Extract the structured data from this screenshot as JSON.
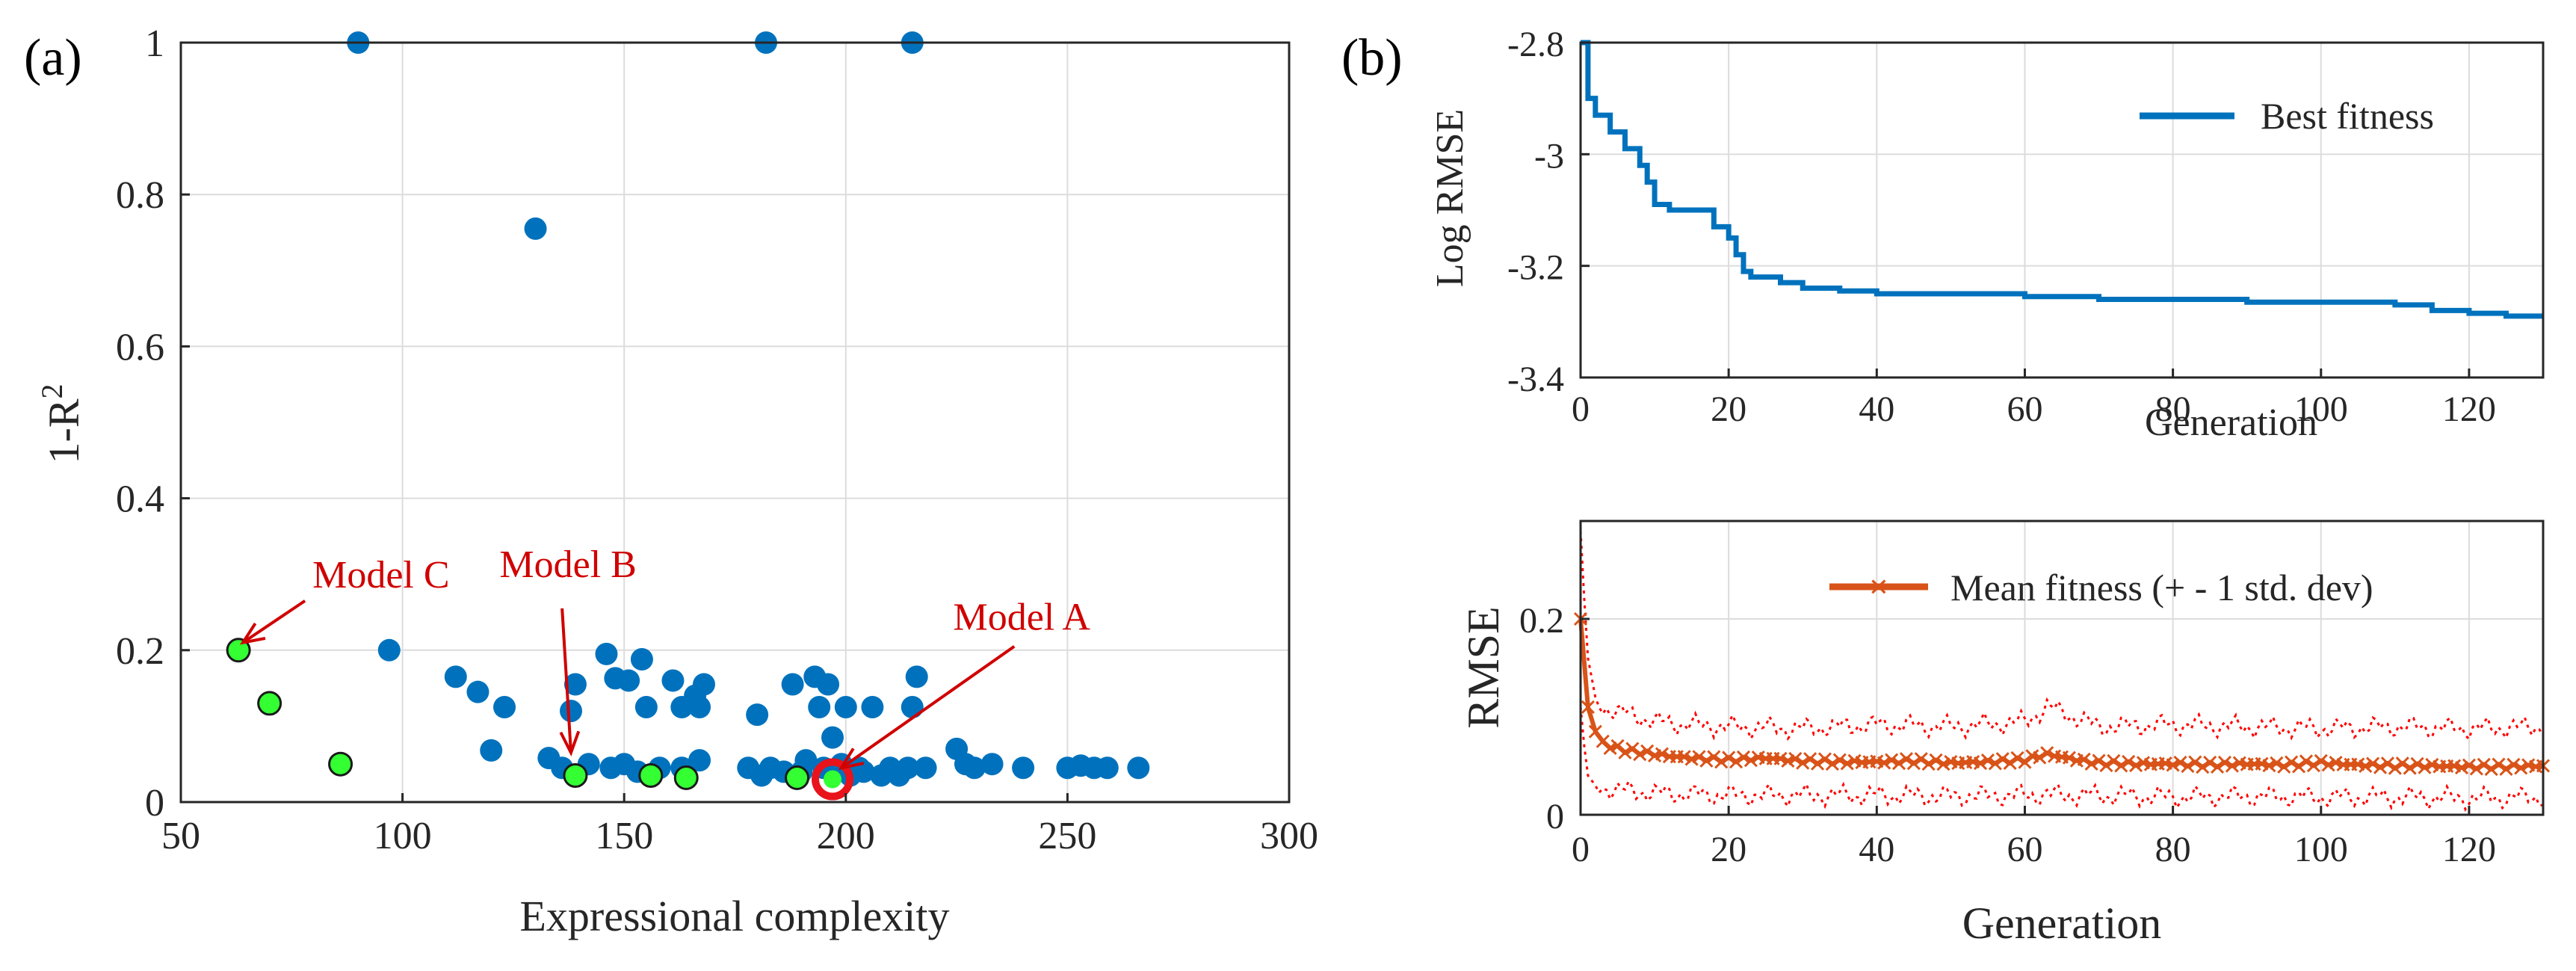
{
  "chart_data": [
    {
      "panel_label": "(a)",
      "type": "scatter",
      "xlabel": "Expressional complexity",
      "ylabel": "1-R",
      "ylabel_sup": "2",
      "xlim": [
        50,
        300
      ],
      "ylim": [
        0,
        1
      ],
      "xticks": [
        50,
        100,
        150,
        200,
        250,
        300
      ],
      "yticks": [
        0,
        0.2,
        0.4,
        0.6,
        0.8,
        1
      ],
      "ytick_labels": [
        "0",
        "0.2",
        "0.4",
        "0.6",
        "0.8",
        "1"
      ],
      "grid": true,
      "colors": {
        "models": "#0072BD",
        "pareto": "#33FF33",
        "highlight": "#E8131B",
        "annotation": "#D00000"
      },
      "series": [
        {
          "name": "models",
          "points": [
            [
              90,
              1.0
            ],
            [
              182,
              1.0
            ],
            [
              215,
              1.0
            ],
            [
              130,
              0.755
            ],
            [
              97,
              0.2
            ],
            [
              112,
              0.165
            ],
            [
              117,
              0.145
            ],
            [
              123,
              0.125
            ],
            [
              120,
              0.068
            ],
            [
              133,
              0.058
            ],
            [
              139,
              0.155
            ],
            [
              138,
              0.12
            ],
            [
              136,
              0.045
            ],
            [
              142,
              0.05
            ],
            [
              146,
              0.195
            ],
            [
              148,
              0.163
            ],
            [
              151,
              0.16
            ],
            [
              154,
              0.188
            ],
            [
              155,
              0.125
            ],
            [
              147,
              0.045
            ],
            [
              150,
              0.05
            ],
            [
              153,
              0.04
            ],
            [
              158,
              0.045
            ],
            [
              161,
              0.16
            ],
            [
              163,
              0.125
            ],
            [
              163,
              0.045
            ],
            [
              166,
              0.14
            ],
            [
              167,
              0.125
            ],
            [
              168,
              0.155
            ],
            [
              167,
              0.055
            ],
            [
              178,
              0.045
            ],
            [
              180,
              0.115
            ],
            [
              181,
              0.035
            ],
            [
              183,
              0.045
            ],
            [
              186,
              0.04
            ],
            [
              188,
              0.155
            ],
            [
              190,
              0.04
            ],
            [
              191,
              0.055
            ],
            [
              193,
              0.165
            ],
            [
              194,
              0.125
            ],
            [
              195,
              0.045
            ],
            [
              196,
              0.155
            ],
            [
              197,
              0.085
            ],
            [
              199,
              0.05
            ],
            [
              200,
              0.125
            ],
            [
              201,
              0.035
            ],
            [
              203,
              0.045
            ],
            [
              204,
              0.04
            ],
            [
              206,
              0.125
            ],
            [
              208,
              0.035
            ],
            [
              210,
              0.045
            ],
            [
              212,
              0.035
            ],
            [
              214,
              0.045
            ],
            [
              215,
              0.125
            ],
            [
              216,
              0.165
            ],
            [
              218,
              0.045
            ],
            [
              225,
              0.07
            ],
            [
              227,
              0.05
            ],
            [
              229,
              0.045
            ],
            [
              233,
              0.05
            ],
            [
              240,
              0.045
            ],
            [
              250,
              0.045
            ],
            [
              253,
              0.048
            ],
            [
              256,
              0.045
            ],
            [
              259,
              0.045
            ],
            [
              266,
              0.045
            ]
          ]
        },
        {
          "name": "pareto front",
          "points": [
            [
              63,
              0.2
            ],
            [
              70,
              0.13
            ],
            [
              86,
              0.05
            ],
            [
              139,
              0.035
            ],
            [
              156,
              0.035
            ],
            [
              164,
              0.032
            ],
            [
              189,
              0.032
            ]
          ]
        },
        {
          "name": "Model A",
          "points": [
            [
              197,
              0.03
            ]
          ]
        }
      ],
      "annotations": [
        {
          "text": "Model C",
          "tip": [
            64,
            0.21
          ],
          "from": [
            78,
            0.265
          ]
        },
        {
          "text": "Model B",
          "tip": [
            138,
            0.065
          ],
          "from": [
            136,
            0.255
          ]
        },
        {
          "text": "Model A",
          "tip": [
            199,
            0.045
          ],
          "from": [
            238,
            0.205
          ]
        }
      ]
    },
    {
      "panel_label": "(b)",
      "type": "line",
      "xlabel": "Generation",
      "ylabel": "Log RMSE",
      "xlim": [
        0,
        130
      ],
      "ylim": [
        -3.4,
        -2.8
      ],
      "xticks": [
        0,
        20,
        40,
        60,
        80,
        100,
        120
      ],
      "yticks": [
        -2.8,
        -3,
        -3.2,
        -3.4
      ],
      "ytick_labels": [
        "-2.8",
        "-3",
        "-3.2",
        "-3.4"
      ],
      "grid": true,
      "legend": "Best fitness",
      "color": "#0072BD",
      "series": [
        {
          "name": "Best fitness",
          "x": [
            0,
            1,
            2,
            4,
            6,
            8,
            9,
            10,
            12,
            15,
            18,
            20,
            21,
            22,
            23,
            27,
            30,
            35,
            40,
            50,
            60,
            70,
            80,
            90,
            100,
            110,
            115,
            120,
            125,
            130
          ],
          "values": [
            -2.8,
            -2.9,
            -2.93,
            -2.96,
            -2.99,
            -3.02,
            -3.05,
            -3.09,
            -3.1,
            -3.1,
            -3.13,
            -3.15,
            -3.18,
            -3.21,
            -3.22,
            -3.23,
            -3.24,
            -3.245,
            -3.25,
            -3.25,
            -3.255,
            -3.26,
            -3.26,
            -3.265,
            -3.265,
            -3.27,
            -3.28,
            -3.285,
            -3.29,
            -3.29
          ]
        }
      ]
    },
    {
      "type": "line",
      "xlabel": "Generation",
      "ylabel": "RMSE",
      "xlim": [
        0,
        130
      ],
      "ylim": [
        0,
        0.3
      ],
      "xticks": [
        0,
        20,
        40,
        60,
        80,
        100,
        120
      ],
      "yticks": [
        0,
        0.2
      ],
      "ytick_labels": [
        "0",
        "0.2"
      ],
      "grid": true,
      "legend": "Mean fitness (+ - 1 std. dev)",
      "color": "#D95319",
      "band_color": "#FF0000",
      "series": [
        {
          "name": "Mean fitness",
          "x": [
            0,
            0.5,
            1,
            2,
            3,
            4,
            5,
            6,
            8,
            10,
            12,
            15,
            20,
            25,
            30,
            35,
            40,
            45,
            50,
            55,
            60,
            63,
            65,
            68,
            70,
            75,
            80,
            85,
            90,
            95,
            100,
            105,
            110,
            115,
            120,
            125,
            130
          ],
          "values": [
            0.2,
            0.14,
            0.11,
            0.085,
            0.075,
            0.07,
            0.068,
            0.066,
            0.064,
            0.062,
            0.06,
            0.058,
            0.056,
            0.058,
            0.055,
            0.054,
            0.054,
            0.055,
            0.053,
            0.054,
            0.056,
            0.062,
            0.059,
            0.055,
            0.053,
            0.052,
            0.052,
            0.051,
            0.052,
            0.051,
            0.053,
            0.051,
            0.05,
            0.05,
            0.049,
            0.049,
            0.05
          ]
        },
        {
          "name": "+1 std",
          "x": [
            0,
            0.5,
            1,
            2,
            3,
            5,
            8,
            10,
            15,
            20,
            30,
            40,
            50,
            60,
            63,
            65,
            70,
            80,
            90,
            100,
            110,
            120,
            130
          ],
          "values": [
            0.29,
            0.22,
            0.16,
            0.12,
            0.11,
            0.105,
            0.1,
            0.095,
            0.092,
            0.09,
            0.088,
            0.092,
            0.09,
            0.095,
            0.11,
            0.105,
            0.09,
            0.092,
            0.09,
            0.088,
            0.09,
            0.088,
            0.09
          ]
        },
        {
          "name": "-1 std",
          "x": [
            0,
            0.5,
            1,
            2,
            3,
            5,
            8,
            10,
            15,
            20,
            30,
            40,
            50,
            60,
            63,
            65,
            70,
            80,
            90,
            100,
            110,
            120,
            130
          ],
          "values": [
            0.11,
            0.07,
            0.04,
            0.03,
            0.028,
            0.025,
            0.024,
            0.022,
            0.021,
            0.02,
            0.02,
            0.02,
            0.019,
            0.02,
            0.021,
            0.02,
            0.02,
            0.018,
            0.019,
            0.018,
            0.018,
            0.017,
            0.018
          ]
        }
      ]
    }
  ]
}
